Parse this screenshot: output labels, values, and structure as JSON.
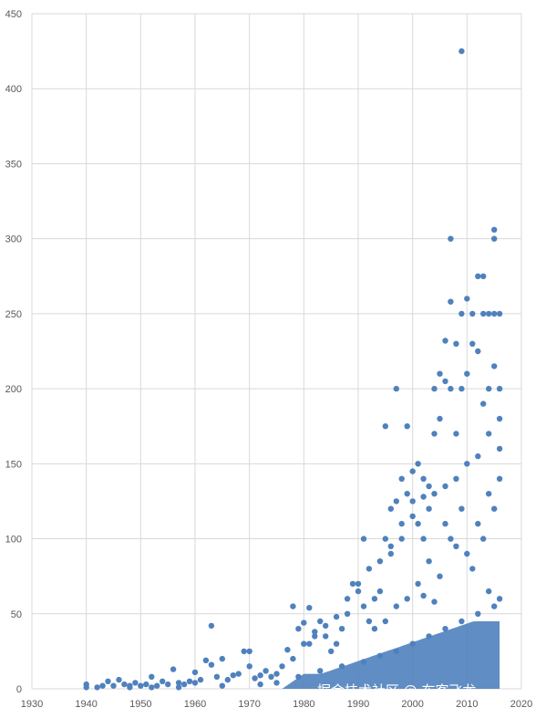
{
  "chart_data": {
    "type": "scatter",
    "title": "",
    "xlabel": "",
    "ylabel": "",
    "xlim": [
      1930,
      2020
    ],
    "ylim": [
      0,
      450
    ],
    "x_ticks": [
      "1930",
      "1940",
      "1950",
      "1960",
      "1970",
      "1980",
      "1990",
      "2000",
      "2010",
      "2020"
    ],
    "y_ticks": [
      "0",
      "50",
      "100",
      "150",
      "200",
      "250",
      "300",
      "350",
      "400",
      "450"
    ],
    "grid": true,
    "legend": "none",
    "marker_color": "#4f81bd",
    "series": [
      {
        "points": [
          [
            1940,
            1
          ],
          [
            1940,
            3
          ],
          [
            1942,
            1
          ],
          [
            1943,
            2
          ],
          [
            1944,
            5
          ],
          [
            1945,
            2
          ],
          [
            1946,
            6
          ],
          [
            1947,
            3
          ],
          [
            1948,
            2
          ],
          [
            1949,
            4
          ],
          [
            1950,
            2
          ],
          [
            1951,
            3
          ],
          [
            1952,
            8
          ],
          [
            1953,
            2
          ],
          [
            1954,
            5
          ],
          [
            1955,
            3
          ],
          [
            1956,
            13
          ],
          [
            1957,
            4
          ],
          [
            1958,
            3
          ],
          [
            1959,
            5
          ],
          [
            1960,
            4
          ],
          [
            1960,
            11
          ],
          [
            1961,
            6
          ],
          [
            1962,
            19
          ],
          [
            1963,
            42
          ],
          [
            1963,
            16
          ],
          [
            1964,
            8
          ],
          [
            1965,
            20
          ],
          [
            1966,
            6
          ],
          [
            1967,
            9
          ],
          [
            1968,
            10
          ],
          [
            1969,
            25
          ],
          [
            1970,
            25
          ],
          [
            1970,
            15
          ],
          [
            1971,
            7
          ],
          [
            1972,
            9
          ],
          [
            1973,
            12
          ],
          [
            1974,
            8
          ],
          [
            1975,
            10
          ],
          [
            1976,
            15
          ],
          [
            1977,
            26
          ],
          [
            1978,
            55
          ],
          [
            1978,
            20
          ],
          [
            1979,
            40
          ],
          [
            1980,
            44
          ],
          [
            1981,
            54
          ],
          [
            1981,
            30
          ],
          [
            1982,
            38
          ],
          [
            1983,
            45
          ],
          [
            1984,
            35
          ],
          [
            1985,
            25
          ],
          [
            1986,
            30
          ],
          [
            1987,
            40
          ],
          [
            1988,
            60
          ],
          [
            1989,
            70
          ],
          [
            1990,
            70
          ],
          [
            1991,
            100
          ],
          [
            1991,
            55
          ],
          [
            1992,
            45
          ],
          [
            1993,
            60
          ],
          [
            1994,
            65
          ],
          [
            1995,
            175
          ],
          [
            1995,
            100
          ],
          [
            1996,
            90
          ],
          [
            1996,
            120
          ],
          [
            1997,
            200
          ],
          [
            1997,
            125
          ],
          [
            1998,
            140
          ],
          [
            1998,
            100
          ],
          [
            1999,
            175
          ],
          [
            1999,
            130
          ],
          [
            2000,
            145
          ],
          [
            2000,
            125
          ],
          [
            2001,
            150
          ],
          [
            2001,
            110
          ],
          [
            2002,
            140
          ],
          [
            2002,
            100
          ],
          [
            2003,
            135
          ],
          [
            2003,
            120
          ],
          [
            2004,
            200
          ],
          [
            2004,
            170
          ],
          [
            2005,
            210
          ],
          [
            2005,
            180
          ],
          [
            2006,
            232
          ],
          [
            2006,
            205
          ],
          [
            2007,
            300
          ],
          [
            2007,
            258
          ],
          [
            2007,
            200
          ],
          [
            2008,
            230
          ],
          [
            2008,
            170
          ],
          [
            2009,
            425
          ],
          [
            2009,
            250
          ],
          [
            2009,
            200
          ],
          [
            2010,
            260
          ],
          [
            2010,
            210
          ],
          [
            2011,
            250
          ],
          [
            2011,
            230
          ],
          [
            2012,
            275
          ],
          [
            2012,
            225
          ],
          [
            2013,
            275
          ],
          [
            2013,
            250
          ],
          [
            2013,
            190
          ],
          [
            2014,
            250
          ],
          [
            2014,
            200
          ],
          [
            2015,
            306
          ],
          [
            2015,
            300
          ],
          [
            2015,
            250
          ],
          [
            2015,
            215
          ],
          [
            2016,
            250
          ],
          [
            2016,
            200
          ],
          [
            2016,
            180
          ],
          [
            2016,
            160
          ],
          [
            2014,
            170
          ],
          [
            2012,
            155
          ],
          [
            2010,
            150
          ],
          [
            2008,
            140
          ],
          [
            2006,
            135
          ],
          [
            2004,
            130
          ],
          [
            2002,
            128
          ],
          [
            2000,
            115
          ],
          [
            1998,
            110
          ],
          [
            1996,
            95
          ],
          [
            1994,
            85
          ],
          [
            1992,
            80
          ],
          [
            1990,
            65
          ],
          [
            1988,
            50
          ],
          [
            1986,
            48
          ],
          [
            1984,
            42
          ],
          [
            1982,
            35
          ],
          [
            1980,
            30
          ],
          [
            2005,
            75
          ],
          [
            2010,
            90
          ],
          [
            2015,
            120
          ],
          [
            2003,
            85
          ],
          [
            2008,
            95
          ],
          [
            2012,
            110
          ],
          [
            2016,
            140
          ],
          [
            2001,
            70
          ],
          [
            2007,
            100
          ],
          [
            2014,
            130
          ],
          [
            1999,
            60
          ],
          [
            1997,
            55
          ],
          [
            2011,
            80
          ],
          [
            2013,
            100
          ],
          [
            2009,
            120
          ],
          [
            2006,
            110
          ],
          [
            1995,
            45
          ],
          [
            1993,
            40
          ],
          [
            2002,
            62
          ],
          [
            2004,
            58
          ],
          [
            1948,
            1
          ],
          [
            1952,
            1
          ],
          [
            1957,
            1
          ],
          [
            1965,
            2
          ],
          [
            1972,
            3
          ],
          [
            1975,
            4
          ],
          [
            1979,
            8
          ],
          [
            1983,
            12
          ],
          [
            1987,
            15
          ],
          [
            1991,
            18
          ],
          [
            1994,
            22
          ],
          [
            1997,
            25
          ],
          [
            2000,
            30
          ],
          [
            2003,
            35
          ],
          [
            2006,
            40
          ],
          [
            2009,
            45
          ],
          [
            2012,
            50
          ],
          [
            2015,
            55
          ],
          [
            2016,
            60
          ],
          [
            2014,
            65
          ]
        ]
      }
    ]
  },
  "watermark": "掘金技术社区 @ 布客飞龙"
}
